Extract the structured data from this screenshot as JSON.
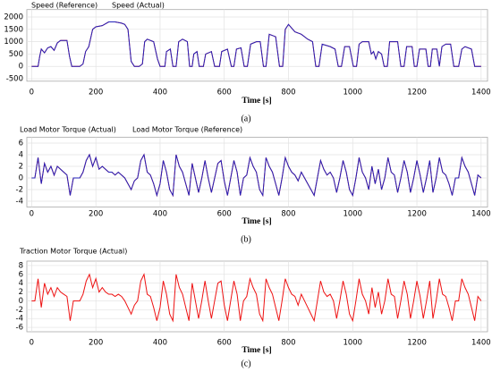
{
  "chart_data": [
    {
      "type": "line",
      "caption": "(a)",
      "xlabel": "Time [s]",
      "x": [
        0,
        20,
        25,
        30,
        40,
        50,
        60,
        70,
        80,
        90,
        110,
        118,
        125,
        150,
        160,
        168,
        178,
        190,
        200,
        220,
        240,
        260,
        280,
        290,
        300,
        310,
        320,
        335,
        345,
        352,
        360,
        380,
        392,
        400,
        415,
        420,
        432,
        440,
        450,
        458,
        470,
        485,
        492,
        500,
        505,
        515,
        522,
        535,
        542,
        560,
        570,
        585,
        592,
        610,
        622,
        630,
        638,
        652,
        662,
        672,
        682,
        700,
        712,
        722,
        730,
        740,
        760,
        772,
        782,
        790,
        800,
        820,
        840,
        860,
        875,
        885,
        895,
        905,
        930,
        945,
        955,
        965,
        975,
        990,
        1002,
        1012,
        1020,
        1030,
        1050,
        1058,
        1065,
        1072,
        1080,
        1090,
        1098,
        1108,
        1115,
        1140,
        1150,
        1160,
        1168,
        1185,
        1192,
        1200,
        1208,
        1228,
        1235,
        1242,
        1248,
        1262,
        1270,
        1278,
        1290,
        1305,
        1315,
        1330,
        1340,
        1350,
        1370,
        1380,
        1390,
        1400
      ],
      "series": [
        {
          "name": "Speed (Reference)",
          "color": "#ee1111",
          "values": [
            0,
            0,
            400,
            700,
            550,
            750,
            800,
            650,
            950,
            1050,
            1050,
            400,
            0,
            0,
            100,
            600,
            800,
            1500,
            1600,
            1650,
            1800,
            1800,
            1750,
            1700,
            1500,
            200,
            0,
            0,
            100,
            1000,
            1100,
            1000,
            300,
            0,
            0,
            600,
            700,
            0,
            0,
            1000,
            1100,
            1000,
            0,
            0,
            500,
            600,
            0,
            0,
            500,
            600,
            0,
            0,
            600,
            700,
            0,
            0,
            700,
            750,
            0,
            0,
            900,
            1000,
            1000,
            0,
            0,
            1300,
            1200,
            0,
            0,
            1500,
            1700,
            1400,
            1300,
            1100,
            1000,
            0,
            0,
            900,
            800,
            700,
            0,
            0,
            800,
            800,
            0,
            0,
            900,
            1000,
            1000,
            500,
            600,
            300,
            600,
            500,
            0,
            0,
            1000,
            1000,
            0,
            0,
            800,
            800,
            0,
            0,
            700,
            700,
            0,
            0,
            700,
            700,
            0,
            800,
            900,
            900,
            0,
            0,
            700,
            800,
            700,
            0,
            0,
            0
          ]
        },
        {
          "name": "Speed (Actual)",
          "color": "#2222bb",
          "values": [
            0,
            0,
            400,
            700,
            550,
            750,
            800,
            650,
            950,
            1050,
            1050,
            400,
            0,
            0,
            100,
            600,
            800,
            1500,
            1600,
            1650,
            1800,
            1800,
            1750,
            1700,
            1500,
            200,
            0,
            0,
            100,
            1000,
            1100,
            1000,
            300,
            0,
            0,
            600,
            700,
            0,
            0,
            1000,
            1100,
            1000,
            0,
            0,
            500,
            600,
            0,
            0,
            500,
            600,
            0,
            0,
            600,
            700,
            0,
            0,
            700,
            750,
            0,
            0,
            900,
            1000,
            1000,
            0,
            0,
            1300,
            1200,
            0,
            0,
            1500,
            1700,
            1400,
            1300,
            1100,
            1000,
            0,
            0,
            900,
            800,
            700,
            0,
            0,
            800,
            800,
            0,
            0,
            900,
            1000,
            1000,
            500,
            600,
            300,
            600,
            500,
            0,
            0,
            1000,
            1000,
            0,
            0,
            800,
            800,
            0,
            0,
            700,
            700,
            0,
            0,
            700,
            700,
            0,
            800,
            900,
            900,
            0,
            0,
            700,
            800,
            700,
            0,
            0,
            0
          ]
        }
      ],
      "xlim": [
        -15,
        1420
      ],
      "xticks": [
        0,
        200,
        400,
        600,
        800,
        1000,
        1200,
        1400
      ],
      "ylim": [
        -600,
        2300
      ],
      "yticks": [
        -500,
        0,
        500,
        1000,
        1500,
        2000
      ],
      "grid": true
    },
    {
      "type": "line",
      "caption": "(b)",
      "xlabel": "Time [s]",
      "x": [
        0,
        10,
        20,
        30,
        40,
        50,
        60,
        70,
        80,
        90,
        100,
        110,
        120,
        130,
        140,
        150,
        160,
        170,
        180,
        190,
        200,
        210,
        220,
        230,
        240,
        250,
        260,
        270,
        280,
        290,
        300,
        310,
        320,
        330,
        340,
        350,
        360,
        370,
        380,
        390,
        400,
        410,
        420,
        430,
        440,
        450,
        460,
        470,
        480,
        490,
        500,
        510,
        520,
        530,
        540,
        550,
        560,
        570,
        580,
        590,
        600,
        610,
        620,
        630,
        640,
        650,
        660,
        670,
        680,
        690,
        700,
        710,
        720,
        730,
        740,
        750,
        760,
        770,
        780,
        790,
        800,
        810,
        820,
        830,
        840,
        850,
        860,
        870,
        880,
        890,
        900,
        910,
        920,
        930,
        940,
        950,
        960,
        970,
        980,
        990,
        1000,
        1010,
        1020,
        1030,
        1040,
        1050,
        1060,
        1070,
        1080,
        1090,
        1100,
        1110,
        1120,
        1130,
        1140,
        1150,
        1160,
        1170,
        1180,
        1190,
        1200,
        1210,
        1220,
        1230,
        1240,
        1250,
        1260,
        1270,
        1280,
        1290,
        1300,
        1310,
        1320,
        1330,
        1340,
        1350,
        1360,
        1370,
        1380,
        1390,
        1400
      ],
      "series": [
        {
          "name": "Load Motor Torque (Actual)",
          "color": "#ee1111",
          "values": [
            0,
            0,
            3.5,
            -1,
            2.5,
            1,
            2,
            0.5,
            2,
            1.5,
            1,
            0.5,
            -3,
            0,
            0,
            0,
            1,
            3,
            4,
            2,
            3.5,
            1.5,
            2,
            1.5,
            1,
            1,
            0.5,
            1,
            0.5,
            0,
            -1,
            -2,
            -0.5,
            0,
            3,
            4,
            1,
            0.5,
            -1,
            -3,
            -1,
            3,
            1,
            -2,
            -3,
            4,
            2,
            1,
            -1,
            -3,
            2.5,
            0,
            -2.5,
            0,
            3,
            0,
            -2.5,
            0,
            2.5,
            3,
            -0.5,
            -3,
            0,
            3,
            1,
            -3,
            0,
            0.5,
            3.5,
            2,
            1,
            -2,
            -3,
            3.5,
            2,
            1,
            -1,
            -3,
            0,
            3.5,
            2,
            1,
            0.5,
            -0.5,
            1,
            0,
            -1,
            -2,
            -3,
            0,
            3,
            1.5,
            0.5,
            1,
            0,
            -2.5,
            0,
            3,
            1,
            -2,
            -3,
            0,
            3.5,
            1,
            0,
            -2,
            2,
            -1,
            1.5,
            -2,
            0,
            3.5,
            1,
            0.5,
            -2.5,
            0,
            3,
            1,
            -2.5,
            0,
            3,
            0.5,
            -2.5,
            0,
            3,
            -2.5,
            0,
            3.5,
            1,
            0.5,
            -1,
            -3,
            0,
            0,
            3.5,
            2,
            1,
            -1,
            -3,
            0.5,
            0
          ]
        },
        {
          "name": "Load Motor Torque (Reference)",
          "color": "#2222bb",
          "values": [
            0,
            0,
            3.5,
            -1,
            2.5,
            1,
            2,
            0.5,
            2,
            1.5,
            1,
            0.5,
            -3,
            0,
            0,
            0,
            1,
            3,
            4,
            2,
            3.5,
            1.5,
            2,
            1.5,
            1,
            1,
            0.5,
            1,
            0.5,
            0,
            -1,
            -2,
            -0.5,
            0,
            3,
            4,
            1,
            0.5,
            -1,
            -3,
            -1,
            3,
            1,
            -2,
            -3,
            4,
            2,
            1,
            -1,
            -3,
            2.5,
            0,
            -2.5,
            0,
            3,
            0,
            -2.5,
            0,
            2.5,
            3,
            -0.5,
            -3,
            0,
            3,
            1,
            -3,
            0,
            0.5,
            3.5,
            2,
            1,
            -2,
            -3,
            3.5,
            2,
            1,
            -1,
            -3,
            0,
            3.5,
            2,
            1,
            0.5,
            -0.5,
            1,
            0,
            -1,
            -2,
            -3,
            0,
            3,
            1.5,
            0.5,
            1,
            0,
            -2.5,
            0,
            3,
            1,
            -2,
            -3,
            0,
            3.5,
            1,
            0,
            -2,
            2,
            -1,
            1.5,
            -2,
            0,
            3.5,
            1,
            0.5,
            -2.5,
            0,
            3,
            1,
            -2.5,
            0,
            3,
            0.5,
            -2.5,
            0,
            3,
            -2.5,
            0,
            3.5,
            1,
            0.5,
            -1,
            -3,
            0,
            0,
            3.5,
            2,
            1,
            -1,
            -3,
            0.5,
            0
          ]
        }
      ],
      "xlim": [
        -15,
        1420
      ],
      "xticks": [
        0,
        200,
        400,
        600,
        800,
        1000,
        1200,
        1400
      ],
      "ylim": [
        -5,
        7
      ],
      "yticks": [
        -4,
        -2,
        0,
        2,
        4,
        6
      ],
      "grid": true
    },
    {
      "type": "line",
      "caption": "(c)",
      "xlabel": "Time [s]",
      "x": [
        0,
        10,
        20,
        30,
        40,
        50,
        60,
        70,
        80,
        90,
        100,
        110,
        120,
        130,
        140,
        150,
        160,
        170,
        180,
        190,
        200,
        210,
        220,
        230,
        240,
        250,
        260,
        270,
        280,
        290,
        300,
        310,
        320,
        330,
        340,
        350,
        360,
        370,
        380,
        390,
        400,
        410,
        420,
        430,
        440,
        450,
        460,
        470,
        480,
        490,
        500,
        510,
        520,
        530,
        540,
        550,
        560,
        570,
        580,
        590,
        600,
        610,
        620,
        630,
        640,
        650,
        660,
        670,
        680,
        690,
        700,
        710,
        720,
        730,
        740,
        750,
        760,
        770,
        780,
        790,
        800,
        810,
        820,
        830,
        840,
        850,
        860,
        870,
        880,
        890,
        900,
        910,
        920,
        930,
        940,
        950,
        960,
        970,
        980,
        990,
        1000,
        1010,
        1020,
        1030,
        1040,
        1050,
        1060,
        1070,
        1080,
        1090,
        1100,
        1110,
        1120,
        1130,
        1140,
        1150,
        1160,
        1170,
        1180,
        1190,
        1200,
        1210,
        1220,
        1230,
        1240,
        1250,
        1260,
        1270,
        1280,
        1290,
        1300,
        1310,
        1320,
        1330,
        1340,
        1350,
        1360,
        1370,
        1380,
        1390,
        1400
      ],
      "series": [
        {
          "name": "Traction Motor Torque (Actual)",
          "color": "#ee1111",
          "values": [
            0,
            0,
            5,
            -1.5,
            4,
            1.5,
            3,
            1,
            3,
            2,
            1.5,
            1,
            -4.5,
            0,
            0,
            0,
            1.5,
            4.5,
            6,
            3,
            5,
            2,
            3,
            2,
            1.5,
            1.5,
            1,
            1.5,
            1,
            0,
            -1.5,
            -3,
            -1,
            0,
            4.5,
            6,
            1.5,
            1,
            -1.5,
            -4.5,
            -1.5,
            4.5,
            1.5,
            -3,
            -4.5,
            6,
            3,
            1.5,
            -1.5,
            -4.5,
            4,
            0,
            -4,
            0,
            4.5,
            0,
            -4,
            0,
            4,
            4.5,
            -1,
            -4.5,
            0,
            4.5,
            1.5,
            -4.5,
            0,
            1,
            5,
            3,
            1.5,
            -3,
            -4.5,
            5,
            3,
            1.5,
            -1.5,
            -4.5,
            0,
            5,
            3,
            1.5,
            1,
            -1,
            1.5,
            0,
            -1.5,
            -3,
            -4.5,
            0,
            4.5,
            2,
            1,
            1.5,
            0,
            -4,
            0,
            4.5,
            1.5,
            -3,
            -4.5,
            0,
            5,
            1.5,
            0,
            -3,
            3,
            -1.5,
            2,
            -3,
            0,
            5,
            1.5,
            1,
            -4,
            0,
            4.5,
            1.5,
            -4,
            0,
            4.5,
            1,
            -4,
            0,
            4.5,
            -4,
            0,
            5,
            1.5,
            1,
            -1.5,
            -4.5,
            0,
            0,
            5,
            3,
            1.5,
            -1.5,
            -4.5,
            1,
            0
          ]
        }
      ],
      "xlim": [
        -15,
        1420
      ],
      "xticks": [
        0,
        200,
        400,
        600,
        800,
        1000,
        1200,
        1400
      ],
      "ylim": [
        -7,
        9
      ],
      "yticks": [
        -6,
        -4,
        -2,
        0,
        2,
        4,
        6,
        8
      ],
      "grid": true
    }
  ]
}
